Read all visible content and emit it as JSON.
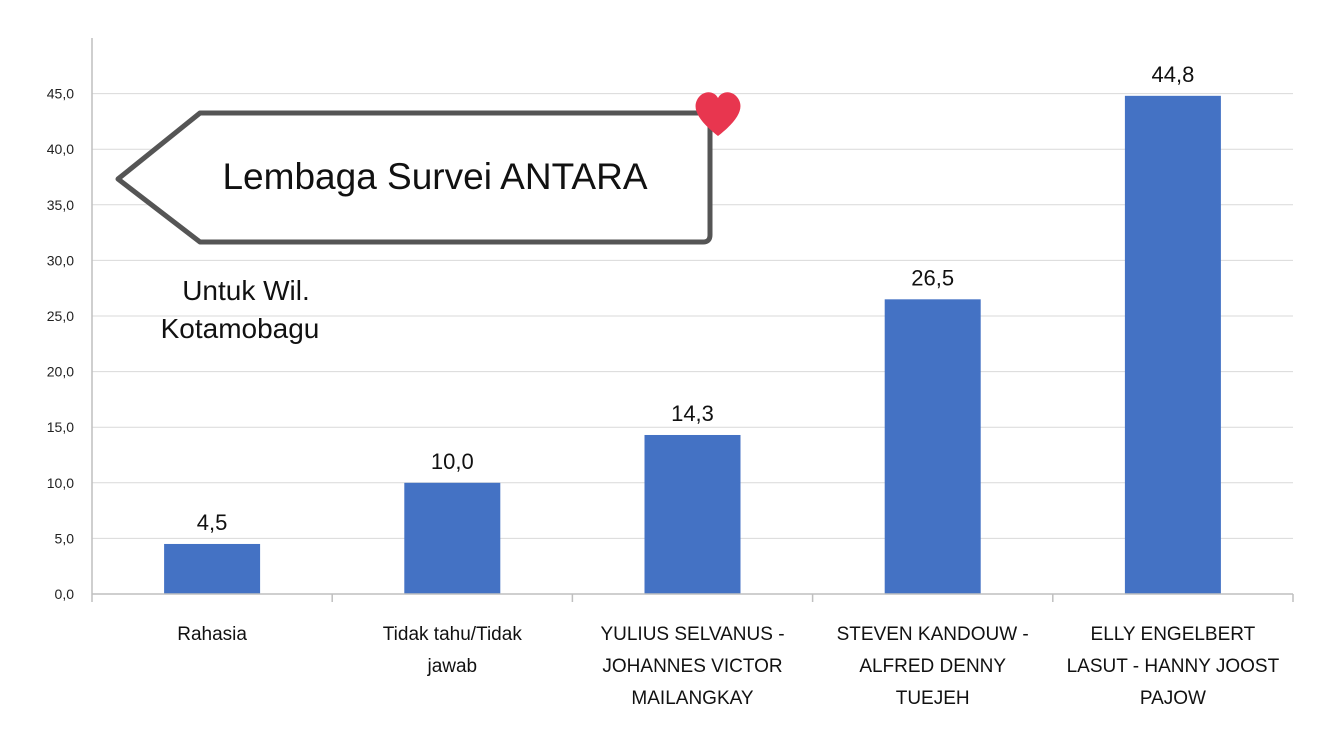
{
  "chart_data": {
    "type": "bar",
    "categories": [
      [
        "Rahasia"
      ],
      [
        "Tidak tahu/Tidak",
        "jawab"
      ],
      [
        "YULIUS SELVANUS -",
        "JOHANNES VICTOR",
        "MAILANGKAY"
      ],
      [
        "STEVEN KANDOUW -",
        "ALFRED DENNY",
        "TUEJEH"
      ],
      [
        "ELLY ENGELBERT",
        "LASUT - HANNY JOOST",
        "PAJOW"
      ]
    ],
    "values": [
      4.5,
      10.0,
      14.3,
      26.5,
      44.8
    ],
    "data_labels": [
      "4,5",
      "10,0",
      "14,3",
      "26,5",
      "44,8"
    ],
    "yticks": [
      "0,0",
      "5,0",
      "10,0",
      "15,0",
      "20,0",
      "25,0",
      "30,0",
      "35,0",
      "40,0",
      "45,0"
    ],
    "ylim": [
      0,
      50
    ],
    "grid": true,
    "bar_color": "#4472c4"
  },
  "callout": {
    "label": "Lembaga Survei ANTARA",
    "heart_color": "#e8364f"
  },
  "note": {
    "lines": [
      "Untuk Wil.",
      "Kotamobagu"
    ]
  }
}
